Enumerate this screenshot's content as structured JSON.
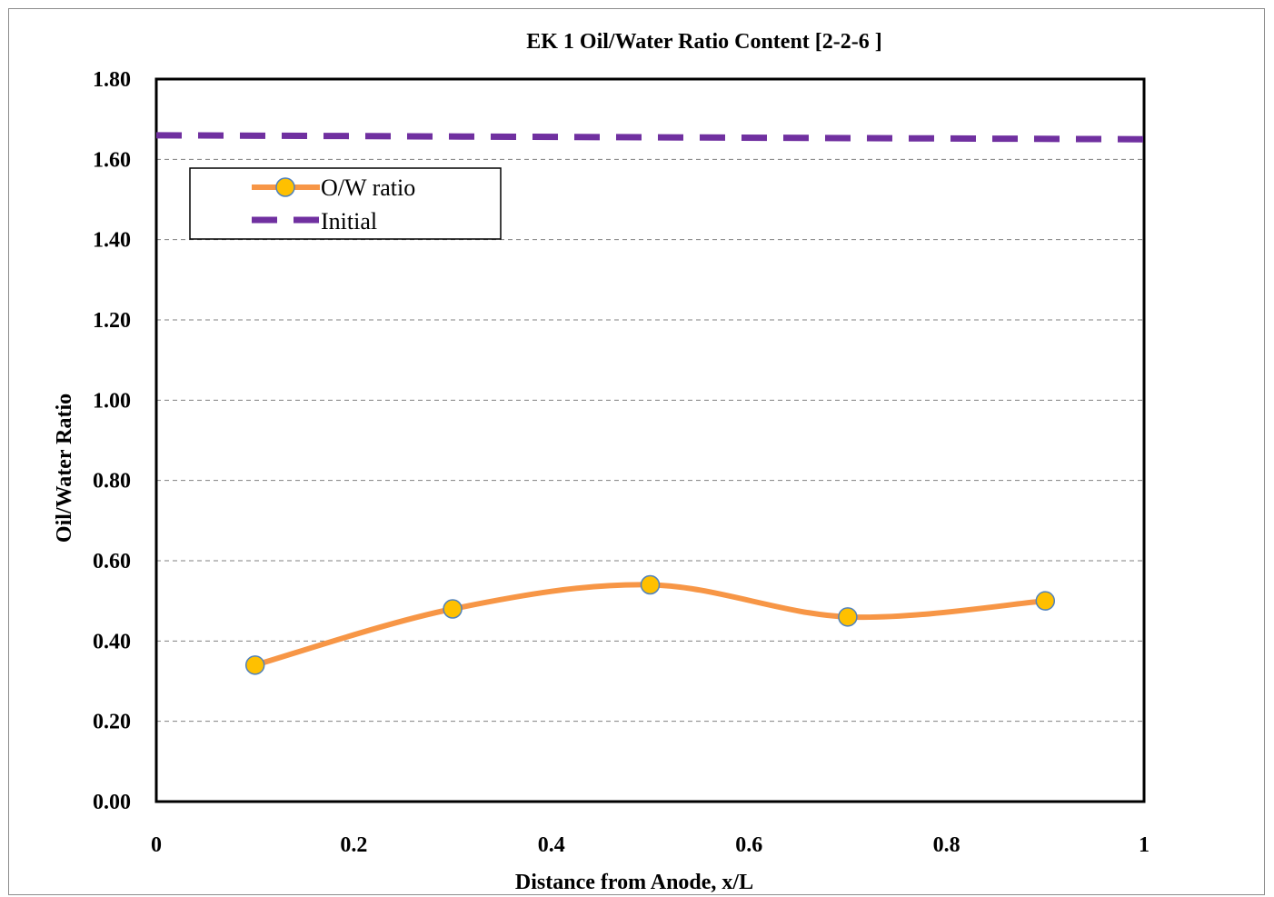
{
  "chart_data": {
    "type": "line",
    "title": "EK 1 Oil/Water Ratio Content  [2-2-6 ]",
    "xlabel": "Distance from Anode, x/L",
    "ylabel": "Oil/Water Ratio",
    "xlim": [
      0,
      1
    ],
    "ylim": [
      0,
      1.8
    ],
    "x_ticks": [
      "0",
      "0.2",
      "0.4",
      "0.6",
      "0.8",
      "1"
    ],
    "x_tick_values": [
      0,
      0.2,
      0.4,
      0.6,
      0.8,
      1
    ],
    "y_ticks": [
      "0.00",
      "0.20",
      "0.40",
      "0.60",
      "0.80",
      "1.00",
      "1.20",
      "1.40",
      "1.60",
      "1.80"
    ],
    "y_tick_values": [
      0,
      0.2,
      0.4,
      0.6,
      0.8,
      1.0,
      1.2,
      1.4,
      1.6,
      1.8
    ],
    "grid": "horizontal dashed",
    "legend_position": "top-left",
    "series": [
      {
        "name": "O/W ratio",
        "color": "#f79646",
        "marker_color": "#ffc000",
        "marker_edge": "#4f81bd",
        "smooth": true,
        "x": [
          0.1,
          0.3,
          0.5,
          0.7,
          0.9
        ],
        "y": [
          0.34,
          0.48,
          0.54,
          0.46,
          0.5
        ]
      },
      {
        "name": "Initial",
        "color": "#7030a0",
        "style": "dashed",
        "x": [
          0,
          1
        ],
        "y": [
          1.66,
          1.65
        ]
      }
    ]
  }
}
